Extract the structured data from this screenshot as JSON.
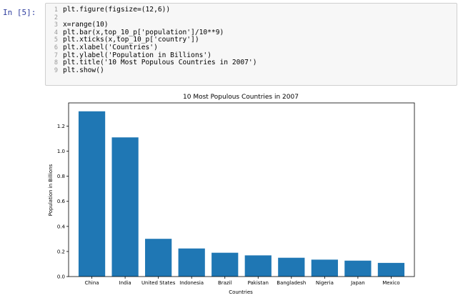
{
  "prompt": "In [5]:",
  "code_lines": [
    {
      "n": "1",
      "text": "plt.figure(figsize=(12,6))"
    },
    {
      "n": "2",
      "text": ""
    },
    {
      "n": "3",
      "text": "x=range(10)"
    },
    {
      "n": "4",
      "text": "plt.bar(x,top_10_p['population']/10**9)"
    },
    {
      "n": "5",
      "text": "plt.xticks(x,top_10_p['country'])"
    },
    {
      "n": "6",
      "text": "plt.xlabel('Countries')"
    },
    {
      "n": "7",
      "text": "plt.ylabel('Population in Billions')"
    },
    {
      "n": "8",
      "text": "plt.title('10 Most Populous Countries in 2007')"
    },
    {
      "n": "9",
      "text": "plt.show()"
    }
  ],
  "colors": {
    "bar": "#1f77b4",
    "prompt": "#303f9f"
  },
  "chart_data": {
    "type": "bar",
    "title": "10 Most Populous Countries in 2007",
    "xlabel": "Countries",
    "ylabel": "Population in Billions",
    "categories": [
      "China",
      "India",
      "United States",
      "Indonesia",
      "Brazil",
      "Pakistan",
      "Bangladesh",
      "Nigeria",
      "Japan",
      "Mexico"
    ],
    "values": [
      1.318,
      1.11,
      0.301,
      0.224,
      0.19,
      0.169,
      0.15,
      0.135,
      0.127,
      0.109
    ],
    "ylim": [
      0,
      1.385
    ],
    "yticks": [
      "0.0",
      "0.2",
      "0.4",
      "0.6",
      "0.8",
      "1.0",
      "1.2"
    ],
    "grid": false
  }
}
